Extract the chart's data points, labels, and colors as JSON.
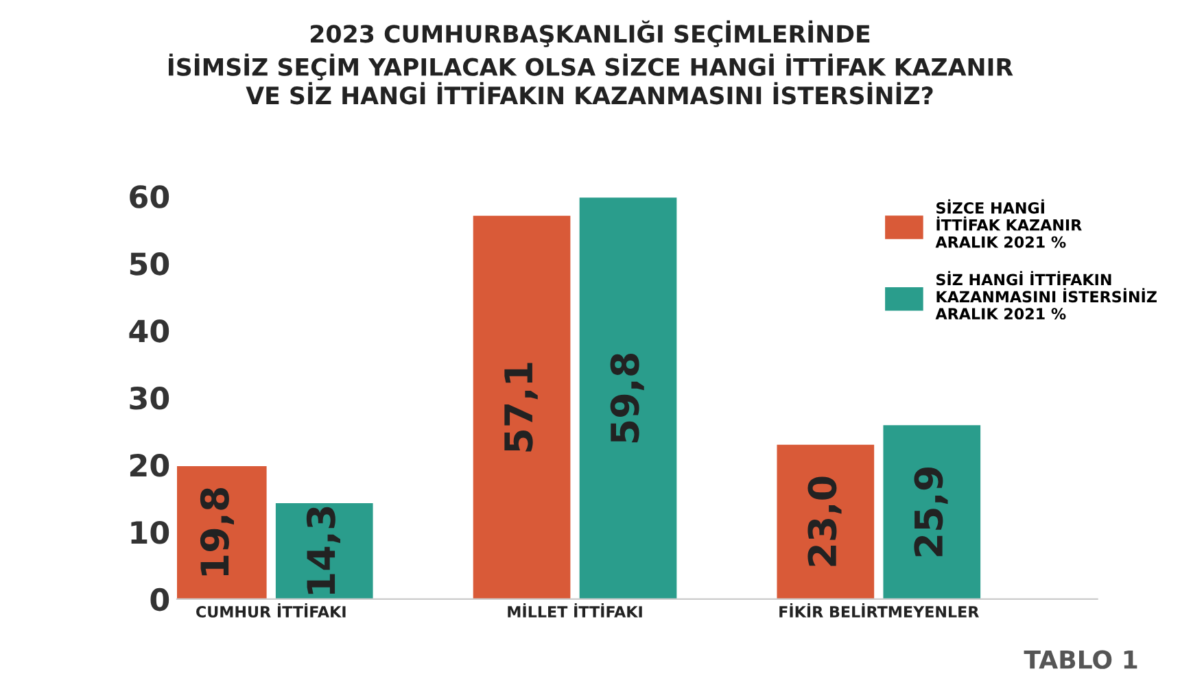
{
  "chart_data": {
    "type": "bar",
    "title": "2023 CUMHURBAŞKANLIĞI SEÇİMLERİNDE\nİSİMSİZ SEÇİM YAPILACAK OLSA SİZCE HANGİ İTTİFAK KAZANIR\nVE SİZ HANGİ İTTİFAKIN KAZANMASINI İSTERSİNİZ?",
    "categories": [
      "CUMHUR İTTİFAKI",
      "MİLLET İTTİFAKI",
      "FİKİR BELİRTMEYENLER"
    ],
    "series": [
      {
        "name": "SİZCE HANGİ\nİTTİFAK KAZANIR\nARALIK 2021 %",
        "color": "#d95a38",
        "values": [
          19.8,
          57.1,
          23.0
        ],
        "value_labels": [
          "19,8",
          "57,1",
          "23,0"
        ]
      },
      {
        "name": "SİZ HANGİ İTTİFAKIN\nKAZANMASINI İSTERSİNİZ\nARALIK 2021 %",
        "color": "#2a9d8c",
        "values": [
          14.3,
          59.8,
          25.9
        ],
        "value_labels": [
          "14,3",
          "59,8",
          "25,9"
        ]
      }
    ],
    "ylim": [
      0,
      60
    ],
    "yticks": [
      0,
      10,
      20,
      30,
      40,
      50,
      60
    ],
    "grid": false,
    "legend": "top right",
    "annotations": [
      "TABLO 1"
    ]
  }
}
